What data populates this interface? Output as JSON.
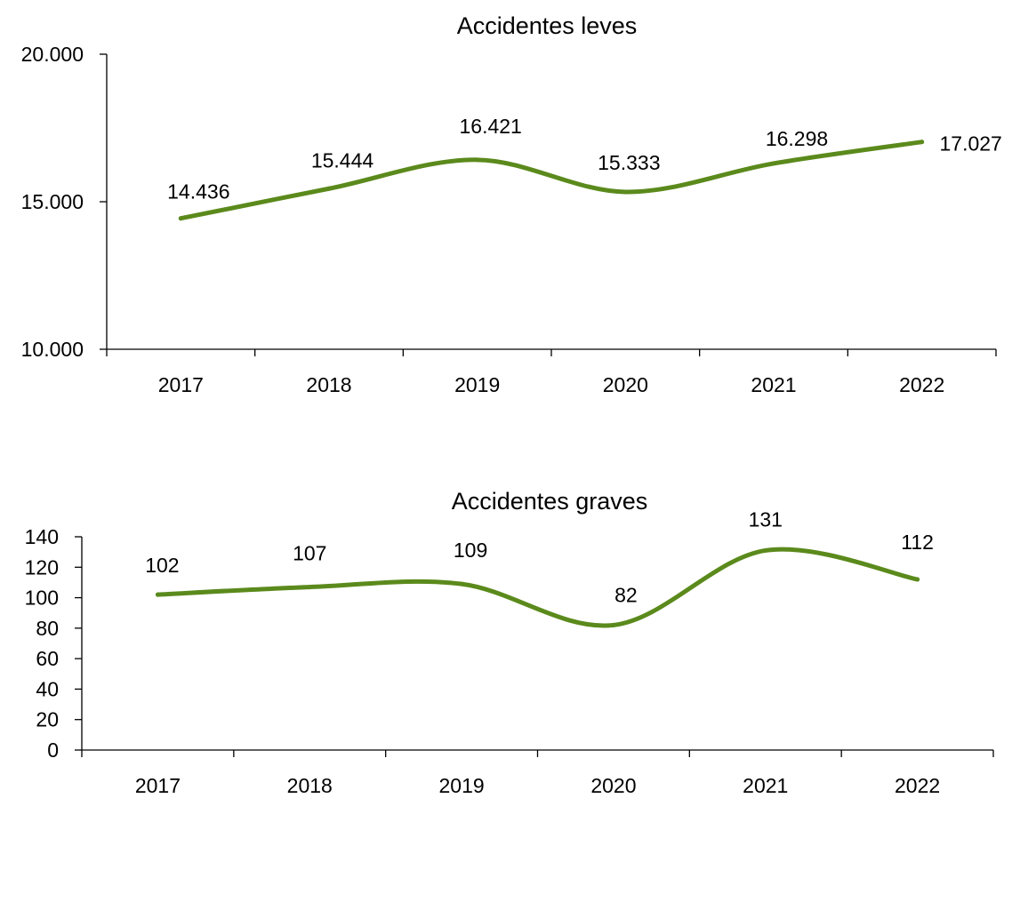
{
  "chart_data": [
    {
      "type": "line",
      "title": "Accidentes leves",
      "xlabel": "",
      "ylabel": "",
      "categories": [
        "2017",
        "2018",
        "2019",
        "2020",
        "2021",
        "2022"
      ],
      "series": [
        {
          "values": [
            14436,
            15444,
            16421,
            15333,
            16298,
            17027
          ],
          "data_labels": [
            "14.436",
            "15.444",
            "16.421",
            "15.333",
            "16.298",
            "17.027"
          ]
        }
      ],
      "ylim": [
        10000,
        20000
      ],
      "yticks": [
        10000,
        15000,
        20000
      ],
      "ytick_labels": [
        "10.000",
        "15.000",
        "20.000"
      ],
      "grid": false,
      "legend": "none",
      "smooth": true,
      "line_color": "#5b8a1c"
    },
    {
      "type": "line",
      "title": "Accidentes graves",
      "xlabel": "",
      "ylabel": "",
      "categories": [
        "2017",
        "2018",
        "2019",
        "2020",
        "2021",
        "2022"
      ],
      "series": [
        {
          "values": [
            102,
            107,
            109,
            82,
            131,
            112
          ],
          "data_labels": [
            "102",
            "107",
            "109",
            "82",
            "131",
            "112"
          ]
        }
      ],
      "ylim": [
        0,
        140
      ],
      "yticks": [
        0,
        20,
        40,
        60,
        80,
        100,
        120,
        140
      ],
      "ytick_labels": [
        "0",
        "20",
        "40",
        "60",
        "80",
        "100",
        "120",
        "140"
      ],
      "grid": false,
      "legend": "none",
      "smooth": true,
      "line_color": "#5b8a1c"
    }
  ]
}
